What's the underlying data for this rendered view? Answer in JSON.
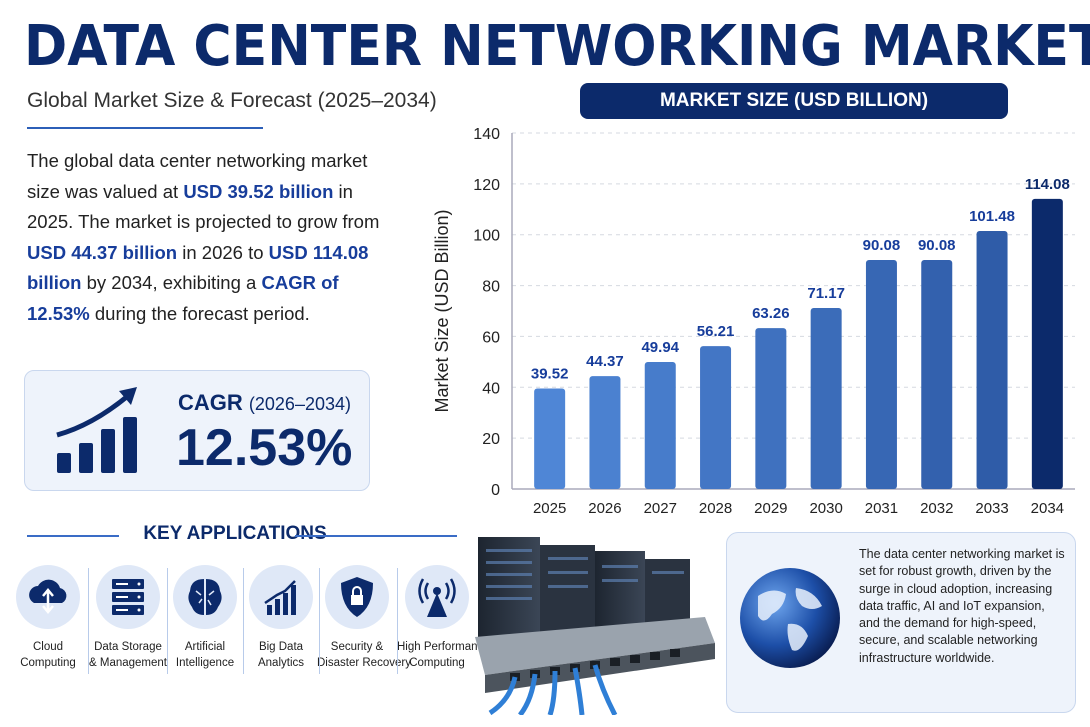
{
  "header": {
    "title": "DATA CENTER NETWORKING MARKET",
    "subtitle": "Global Market Size & Forecast (2025–2034)"
  },
  "summary": {
    "p1": "The global data center networking market size was valued at ",
    "v1": "USD 39.52 billion",
    "p2": " in 2025. The market is projected to grow from ",
    "v2": "USD 44.37 billion",
    "p3": " in 2026 to ",
    "v3": "USD 114.08 billion",
    "p4": " by 2034, exhibiting a ",
    "v4": "CAGR of 12.53%",
    "p5": " during the forecast period."
  },
  "cagr": {
    "label": "CAGR",
    "period": "(2026–2034)",
    "value": "12.53%",
    "icon": "growth-chart-arrow-icon"
  },
  "chart_data": {
    "type": "bar",
    "title": "MARKET SIZE (USD BILLION)",
    "xlabel": "",
    "ylabel": "Market Size (USD Billion)",
    "categories": [
      "2025",
      "2026",
      "2027",
      "2028",
      "2029",
      "2030",
      "2031",
      "2032",
      "2033",
      "2034"
    ],
    "values": [
      39.52,
      44.37,
      49.94,
      56.21,
      63.26,
      71.17,
      90.08,
      90.08,
      101.48,
      114.08
    ],
    "ylim": [
      0,
      140
    ],
    "yticks": [
      0,
      20,
      40,
      60,
      80,
      100,
      120,
      140
    ],
    "grid": true,
    "colors": {
      "start": "#4f86d6",
      "end": "#2f5ca8",
      "highlight": "#0c2a6b",
      "label": "#173d9b"
    }
  },
  "applications": {
    "title": "KEY APPLICATIONS",
    "items": [
      {
        "l1": "Cloud",
        "l2": "Computing",
        "icon": "cloud-upload-icon"
      },
      {
        "l1": "Data Storage",
        "l2": "& Management",
        "icon": "server-icon"
      },
      {
        "l1": "Artificial",
        "l2": "Intelligence",
        "icon": "brain-icon"
      },
      {
        "l1": "Big Data",
        "l2": "Analytics",
        "icon": "bar-chart-icon"
      },
      {
        "l1": "Security &",
        "l2": "Disaster Recovery",
        "icon": "shield-lock-icon"
      },
      {
        "l1": "High Performance",
        "l2": "Computing",
        "icon": "antenna-icon"
      }
    ]
  },
  "info": {
    "text": "The data center networking market is set for robust growth, driven by the surge in cloud adoption, increasing data traffic, AI and IoT expansion, and the demand for high-speed, secure, and scalable networking infrastructure worldwide.",
    "icon": "globe-icon"
  },
  "colors": {
    "navy": "#0c2a6b",
    "accent": "#2c5fb8"
  }
}
